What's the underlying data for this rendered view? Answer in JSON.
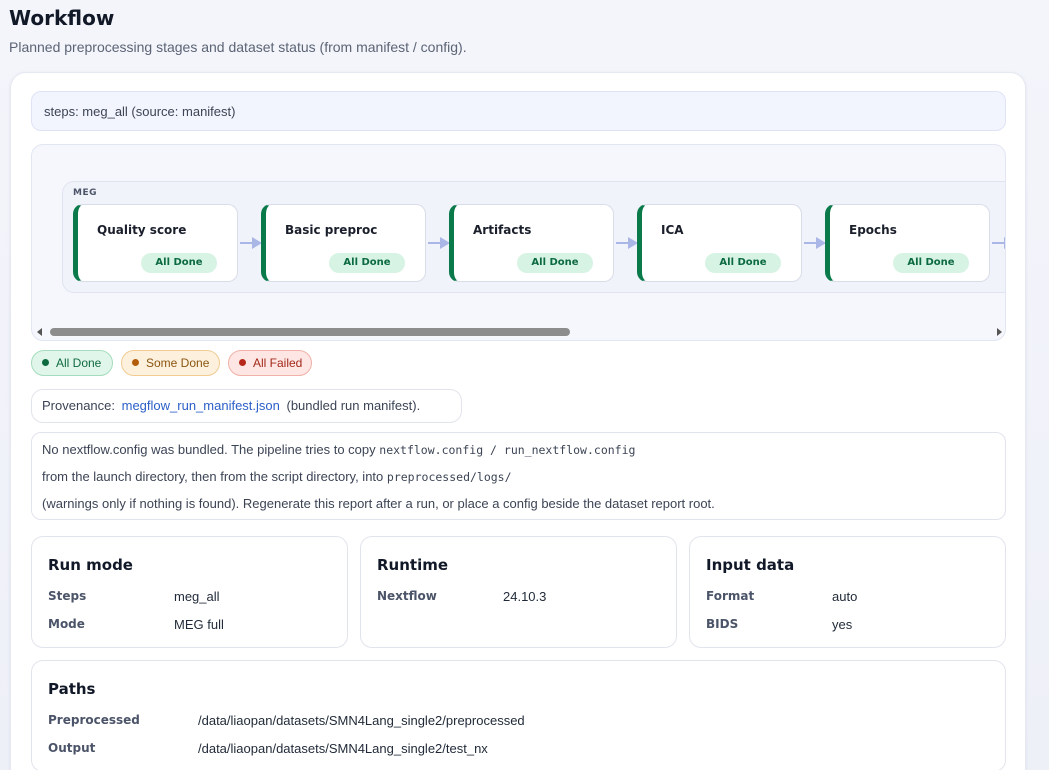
{
  "header": {
    "title": "Workflow",
    "subtitle": "Planned preprocessing stages and dataset status (from manifest / config)."
  },
  "steps_bar": {
    "text": "steps: meg_all (source: manifest)"
  },
  "pipeline": {
    "lane_label": "MEG",
    "stages": [
      {
        "name": "Quality score",
        "status": "All Done"
      },
      {
        "name": "Basic preproc",
        "status": "All Done"
      },
      {
        "name": "Artifacts",
        "status": "All Done"
      },
      {
        "name": "ICA",
        "status": "All Done"
      },
      {
        "name": "Epochs",
        "status": "All Done"
      }
    ],
    "scroll_position": 0
  },
  "legend": {
    "all_done": "All Done",
    "some_done": "Some Done",
    "all_failed": "All Failed"
  },
  "provenance": {
    "prefix": "Provenance:",
    "link": "megflow_run_manifest.json",
    "suffix": "(bundled run manifest)."
  },
  "note": {
    "line1_text": "No nextflow.config was bundled. The pipeline tries to copy",
    "line1_code": "nextflow.config / run_nextflow.config",
    "line2_text": "from the launch directory, then from the script directory, into",
    "line2_code": "preprocessed/logs/",
    "line3_text": "(warnings only if nothing is found). Regenerate this report after a run, or place a config beside the dataset report root."
  },
  "run_mode": {
    "title": "Run mode",
    "rows": [
      {
        "key": "Steps",
        "value": "meg_all"
      },
      {
        "key": "Mode",
        "value": "MEG full"
      }
    ]
  },
  "runtime": {
    "title": "Runtime",
    "rows": [
      {
        "key": "Nextflow",
        "value": "24.10.3"
      }
    ]
  },
  "input_data": {
    "title": "Input data",
    "rows": [
      {
        "key": "Format",
        "value": "auto"
      },
      {
        "key": "BIDS",
        "value": "yes"
      }
    ]
  },
  "paths": {
    "title": "Paths",
    "rows": [
      {
        "key": "Preprocessed",
        "value": "/data/liaopan/datasets/SMN4Lang_single2/preprocessed"
      },
      {
        "key": "Output",
        "value": "/data/liaopan/datasets/SMN4Lang_single2/test_nx"
      }
    ]
  },
  "colors": {
    "done_accent": "#0b7a4b",
    "done_badge_bg": "#d7f3e4",
    "arrow": "#a9b6e6",
    "link": "#2b5fc7"
  }
}
